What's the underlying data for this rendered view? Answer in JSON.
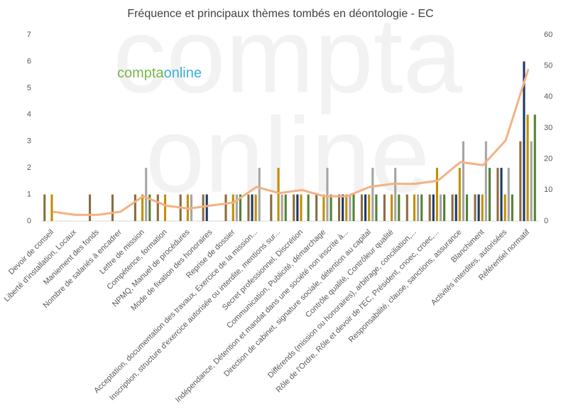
{
  "chart_data": {
    "type": "bar-line",
    "title": "Fréquence et principaux thèmes tombés en déontologie - EC",
    "watermark": [
      "compta",
      "online"
    ],
    "logo": [
      "compta",
      "online"
    ],
    "categories": [
      "Devoir de conseil",
      "Liberté d'installation, Locaux",
      "Maniement des fonds",
      "Nombre de salariés à encadrer",
      "Lettre de mission",
      "Compétence, formation",
      "NPMQ, Manuel de procédures",
      "Mode de fixation des honoraires",
      "Reprise de dossier",
      "Acceptation, documentation des travaux, Exercice de la mission...",
      "Inscription, structure d'exercice autorisée ou interdite, mentions sur...",
      "Secret professionnel, Discrétion",
      "Communication, Publicité, démarchage",
      "Indépendance, Détention et mandat dans une société non inscrite à...",
      "Direction de cabinet, signature sociale, détention au capital",
      "Contrôle qualité, Contrôleur qualité",
      "Différends (mission ou honoraires), arbitrage, conciliation,...",
      "Rôle de l'Ordre, Rôle et devoir de l'EC, Président, cnoec, croec,...",
      "Responsabilité, clause, sanctions, assurance",
      "Blanchiment",
      "Activités interdites, autorisées",
      "Référentiel normatif"
    ],
    "series": [
      {
        "color": "#8c6d3f",
        "values": [
          1,
          0,
          1,
          1,
          1,
          1,
          1,
          1,
          1,
          1,
          1,
          1,
          1,
          1,
          1,
          1,
          1,
          1,
          1,
          1,
          2,
          3
        ]
      },
      {
        "color": "#1f3864",
        "values": [
          0,
          0,
          0,
          0,
          0,
          0,
          0,
          1,
          0,
          1,
          0,
          1,
          0,
          1,
          1,
          0,
          0,
          1,
          1,
          1,
          2,
          6
        ]
      },
      {
        "color": "#bf9000",
        "values": [
          1,
          0,
          0,
          0,
          1,
          1,
          1,
          0,
          1,
          1,
          2,
          1,
          1,
          1,
          1,
          1,
          1,
          2,
          2,
          1,
          1,
          4
        ]
      },
      {
        "color": "#a5a5a5",
        "values": [
          0,
          0,
          0,
          0,
          2,
          0,
          1,
          0,
          1,
          2,
          1,
          0,
          2,
          1,
          2,
          2,
          1,
          1,
          3,
          3,
          2,
          3
        ]
      },
      {
        "color": "#548235",
        "values": [
          0,
          0,
          0,
          0,
          1,
          0,
          0,
          0,
          1,
          0,
          1,
          1,
          1,
          1,
          1,
          1,
          1,
          1,
          1,
          2,
          1,
          4
        ]
      },
      {
        "color": "#f4b183",
        "type": "line",
        "axis": "y2",
        "values": [
          3,
          2,
          2,
          3,
          8,
          5,
          4,
          5,
          6,
          11,
          9,
          10,
          8,
          8,
          11,
          12,
          12,
          13,
          19,
          18,
          26,
          49
        ]
      }
    ],
    "ylim": [
      0,
      7
    ],
    "yticks": [
      0,
      1,
      2,
      3,
      4,
      5,
      6,
      7
    ],
    "y2lim": [
      0,
      60
    ],
    "y2ticks": [
      0,
      10,
      20,
      30,
      40,
      50,
      60
    ],
    "grid": false
  }
}
